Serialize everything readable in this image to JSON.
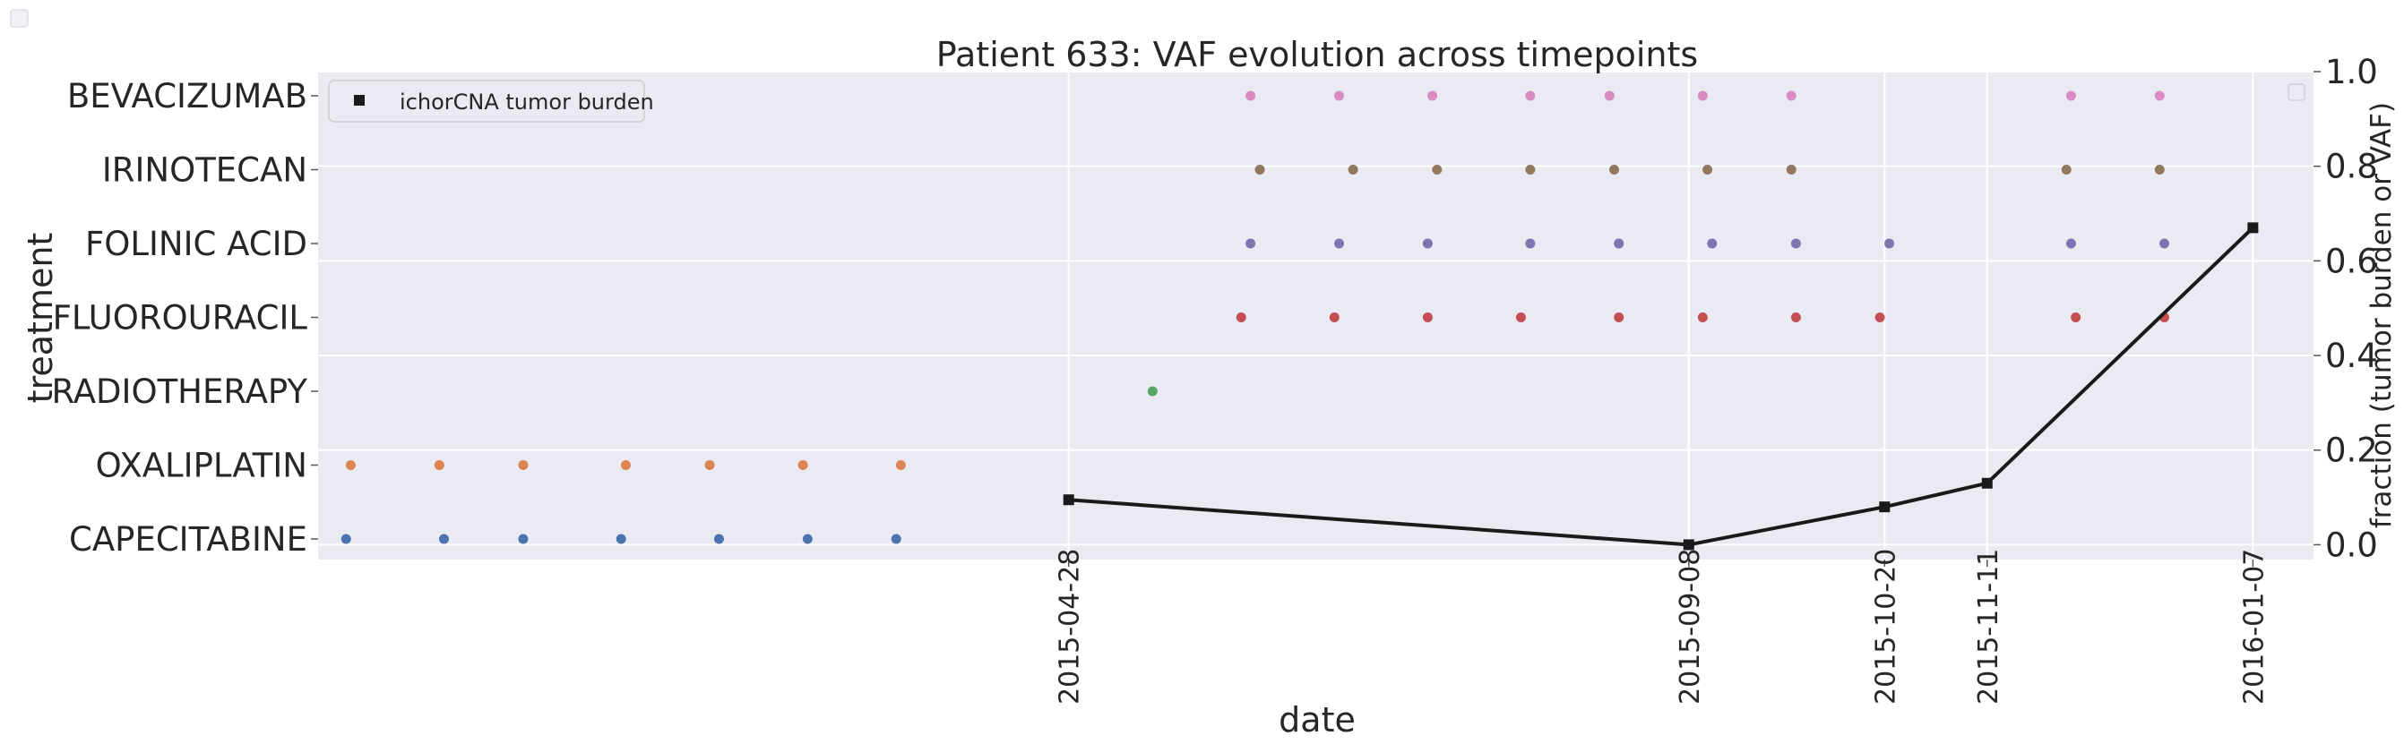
{
  "chart_data": {
    "type": "scatter",
    "title": "Patient 633: VAF evolution across timepoints",
    "xlabel": "date",
    "ylabel": "treatment",
    "ylabel_right": "fraction (tumor burden or VAF)",
    "grid": true,
    "legend_placement": "top-left",
    "x_range": [
      "2014-11-18",
      "2016-01-20"
    ],
    "x_tick_labels": [
      "2015-04-28",
      "2015-09-08",
      "2015-10-20",
      "2015-11-11",
      "2016-01-07"
    ],
    "categories": [
      "CAPECITABINE",
      "OXALIPLATIN",
      "RADIOTHERAPY",
      "FLUOROURACIL",
      "FOLINIC ACID",
      "IRINOTECAN",
      "BEVACIZUMAB"
    ],
    "right_axis": {
      "ylim": [
        -0.02,
        1.0
      ],
      "ticks": [
        "0.0",
        "0.2",
        "0.4",
        "0.6",
        "0.8",
        "1.0"
      ]
    },
    "treatments": [
      {
        "name": "CAPECITABINE",
        "color": "#4c72b0",
        "dates": [
          "2014-11-24",
          "2014-12-15",
          "2015-01-01",
          "2015-01-22",
          "2015-02-12",
          "2015-03-03",
          "2015-03-22"
        ]
      },
      {
        "name": "OXALIPLATIN",
        "color": "#dd8452",
        "dates": [
          "2014-11-25",
          "2014-12-14",
          "2015-01-01",
          "2015-01-23",
          "2015-02-10",
          "2015-03-02",
          "2015-03-23"
        ]
      },
      {
        "name": "RADIOTHERAPY",
        "color": "#55a868",
        "dates": [
          "2015-05-16"
        ]
      },
      {
        "name": "FLUOROURACIL",
        "color": "#c44e52",
        "dates": [
          "2015-06-04",
          "2015-06-24",
          "2015-07-14",
          "2015-08-03",
          "2015-08-24",
          "2015-09-11",
          "2015-10-01",
          "2015-10-19",
          "2015-11-30",
          "2015-12-19"
        ]
      },
      {
        "name": "FOLINIC ACID",
        "color": "#8172b3",
        "dates": [
          "2015-06-06",
          "2015-06-25",
          "2015-07-14",
          "2015-08-05",
          "2015-08-24",
          "2015-09-13",
          "2015-10-01",
          "2015-10-21",
          "2015-11-29",
          "2015-12-19"
        ]
      },
      {
        "name": "IRINOTECAN",
        "color": "#937860",
        "dates": [
          "2015-06-08",
          "2015-06-28",
          "2015-07-16",
          "2015-08-05",
          "2015-08-23",
          "2015-09-12",
          "2015-09-30",
          "2015-11-28",
          "2015-12-18"
        ]
      },
      {
        "name": "BEVACIZUMAB",
        "color": "#da8bc3",
        "dates": [
          "2015-06-06",
          "2015-06-25",
          "2015-07-15",
          "2015-08-05",
          "2015-08-22",
          "2015-09-11",
          "2015-09-30",
          "2015-11-29",
          "2015-12-18"
        ]
      }
    ],
    "series": [
      {
        "name": "ichorCNA tumor burden",
        "color": "#1a1a1a",
        "marker": "square",
        "x": [
          "2015-04-28",
          "2015-09-08",
          "2015-10-20",
          "2015-11-11",
          "2016-01-07"
        ],
        "y": [
          0.095,
          0.0,
          0.08,
          0.13,
          0.67
        ]
      }
    ]
  }
}
